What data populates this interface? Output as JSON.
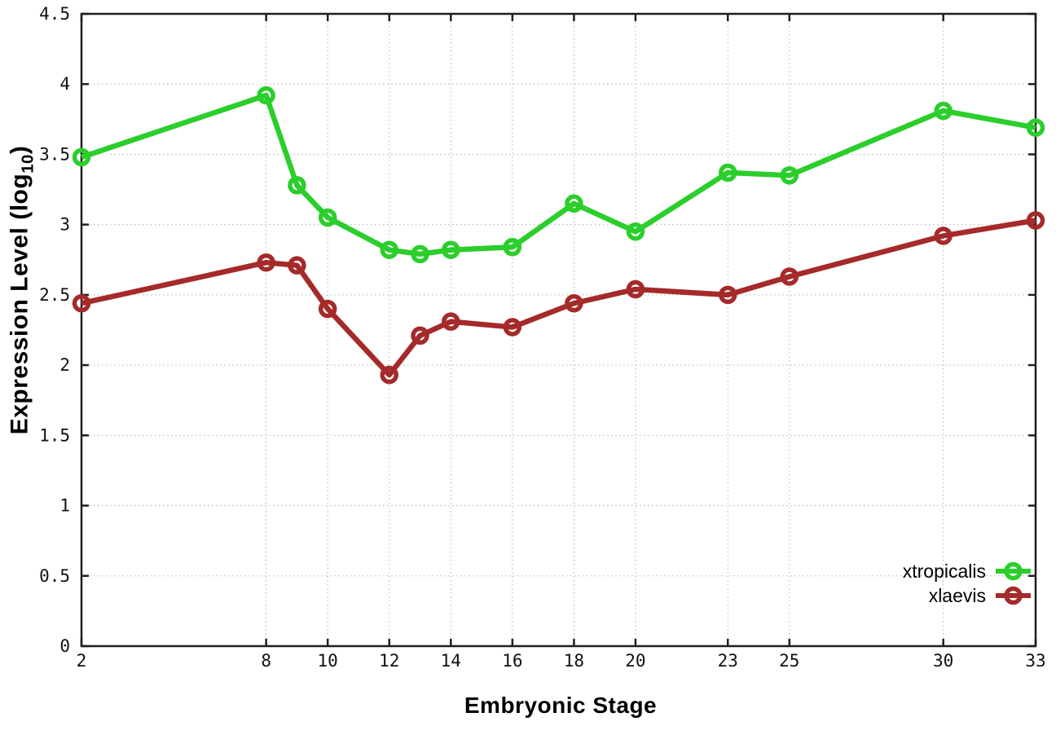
{
  "chart_data": {
    "type": "line",
    "title": "",
    "xlabel": "Embryonic Stage",
    "ylabel": {
      "main": "Expression Level (log",
      "sub": "10",
      "end": ")"
    },
    "xlim": [
      2,
      33
    ],
    "ylim": [
      0,
      4.5
    ],
    "xticks": [
      2,
      8,
      10,
      12,
      14,
      16,
      18,
      20,
      23,
      25,
      30,
      33
    ],
    "yticks": [
      0,
      0.5,
      1,
      1.5,
      2,
      2.5,
      3,
      3.5,
      4,
      4.5
    ],
    "grid": true,
    "legend_position": "inside-bottom-right",
    "x": [
      2,
      8,
      9,
      10,
      12,
      13,
      14,
      16,
      18,
      20,
      23,
      25,
      30,
      33
    ],
    "series": [
      {
        "name": "xtropicalis",
        "color": "#2bce2b",
        "values": [
          3.48,
          3.92,
          3.28,
          3.05,
          2.82,
          2.79,
          2.82,
          2.84,
          3.15,
          2.95,
          3.37,
          3.35,
          3.81,
          3.69
        ]
      },
      {
        "name": "xlaevis",
        "color": "#a52a2a",
        "values": [
          2.44,
          2.73,
          2.71,
          2.4,
          1.93,
          2.21,
          2.31,
          2.27,
          2.44,
          2.54,
          2.5,
          2.63,
          2.92,
          3.03
        ]
      }
    ],
    "style": {
      "border_color": "#1f1f1f",
      "grid_color": "#b3b3b3",
      "tick_label_color": "#111111"
    }
  }
}
